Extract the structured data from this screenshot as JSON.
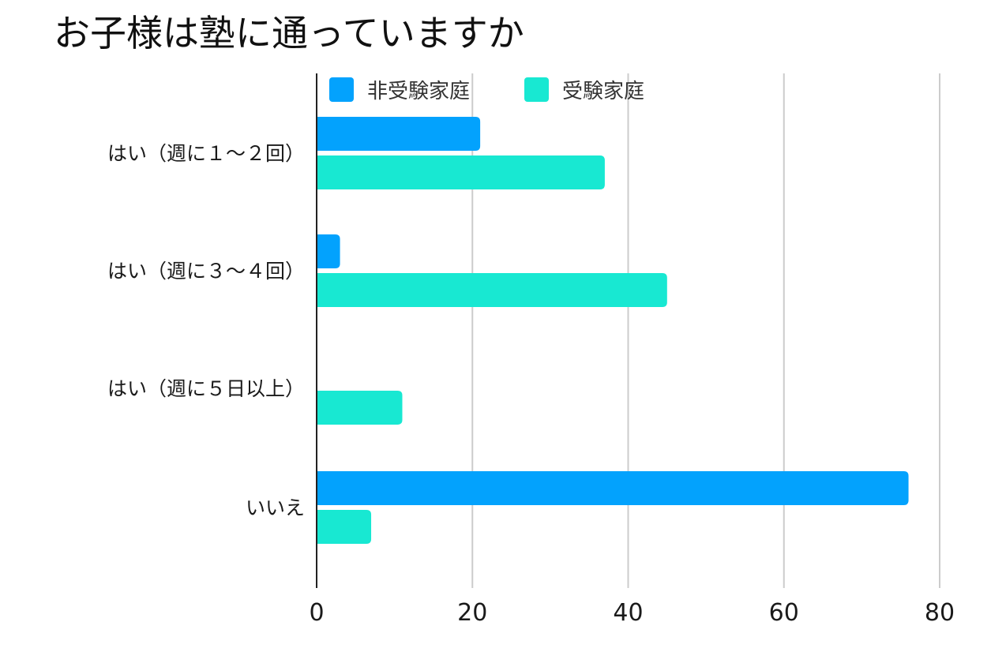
{
  "chart_data": {
    "type": "bar",
    "orientation": "horizontal",
    "title": "お子様は塾に通っていますか",
    "xlabel": "",
    "ylabel": "",
    "categories": [
      "はい（週に１〜２回）",
      "はい（週に３〜４回）",
      "はい（週に５日以上）",
      "いいえ"
    ],
    "series": [
      {
        "name": "非受験家庭",
        "color": "#03a2fd",
        "values": [
          21,
          3,
          0,
          76
        ]
      },
      {
        "name": "受験家庭",
        "color": "#18e8d2",
        "values": [
          37,
          45,
          11,
          7
        ]
      }
    ],
    "xlim": [
      0,
      80
    ],
    "xticks": [
      0,
      20,
      40,
      60,
      80
    ],
    "grid": true,
    "legend_position": "top"
  }
}
